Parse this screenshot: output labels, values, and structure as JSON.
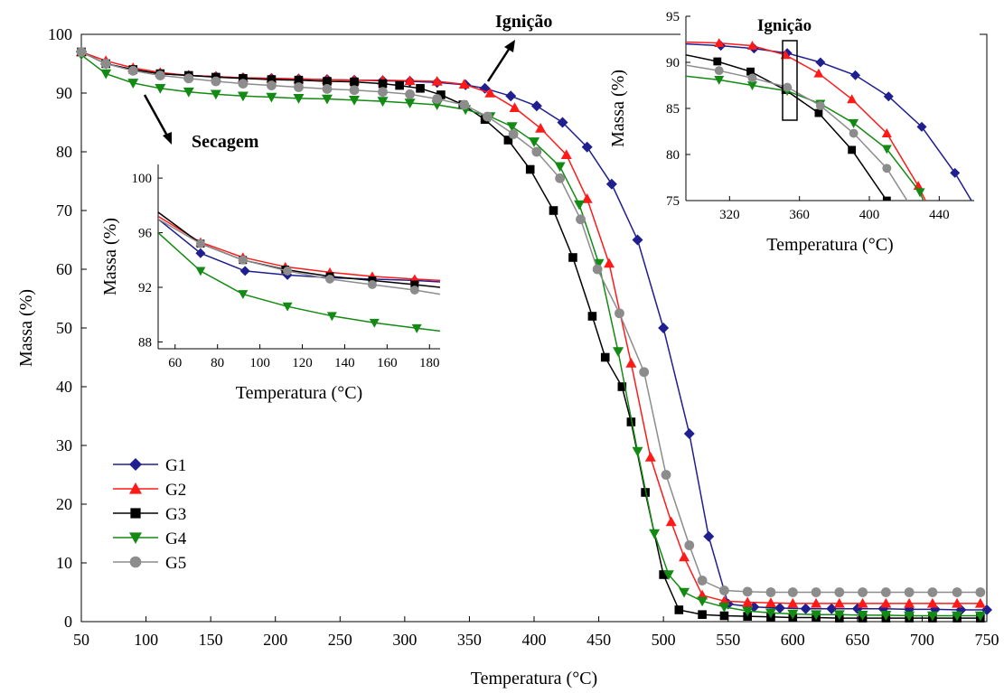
{
  "chart_data": [
    {
      "type": "line",
      "xlabel": "Temperatura (°C)",
      "ylabel": "Massa (%)",
      "xlim": [
        50,
        750
      ],
      "ylim": [
        0,
        100
      ],
      "xticks": [
        50,
        100,
        150,
        200,
        250,
        300,
        350,
        400,
        450,
        500,
        550,
        600,
        650,
        700,
        750
      ],
      "yticks": [
        0,
        10,
        20,
        30,
        40,
        50,
        60,
        70,
        80,
        90,
        100
      ],
      "legend_position": "bottom-left",
      "annotations": [
        {
          "text": "Ignição",
          "x": 370,
          "y": 101.5
        },
        {
          "text": "Secagem",
          "x": 130,
          "y": 86.5
        }
      ],
      "series": [
        {
          "name": "G1",
          "color": "#1f1f8f",
          "marker": "diamond",
          "x": [
            50,
            69,
            90,
            111,
            133,
            154,
            175,
            197,
            218,
            240,
            261,
            283,
            304,
            325,
            347,
            362,
            382,
            402,
            422,
            441,
            460,
            480,
            500,
            520,
            535,
            550,
            570,
            590,
            610,
            630,
            650,
            670,
            690,
            710,
            730,
            750
          ],
          "y": [
            97,
            95,
            94,
            93.3,
            93,
            92.8,
            92.6,
            92.5,
            92.4,
            92.3,
            92.2,
            92.1,
            92,
            91.8,
            91.4,
            90.8,
            89.5,
            87.8,
            85,
            80.8,
            74.5,
            65,
            50,
            32,
            14.5,
            3,
            2.5,
            2.3,
            2.2,
            2.2,
            2.2,
            2.2,
            2.1,
            2.1,
            2,
            2
          ]
        },
        {
          "name": "G2",
          "color": "#ff1a1a",
          "marker": "triangle-up",
          "x": [
            50,
            69,
            90,
            111,
            133,
            154,
            175,
            197,
            218,
            240,
            261,
            283,
            304,
            325,
            346,
            366,
            385,
            405,
            425,
            441,
            458,
            475,
            490,
            506,
            516,
            530,
            547,
            565,
            583,
            600,
            618,
            636,
            654,
            672,
            690,
            708,
            727,
            745
          ],
          "y": [
            97,
            95.5,
            94.3,
            93.5,
            93,
            92.8,
            92.6,
            92.5,
            92.4,
            92.3,
            92.2,
            92.2,
            92.1,
            92,
            91.5,
            90,
            87.5,
            84,
            79.5,
            72,
            61,
            44,
            28,
            17,
            11,
            4.5,
            3.5,
            3.3,
            3.2,
            3.1,
            3.1,
            3.1,
            3.1,
            3.1,
            3.1,
            3.1,
            3.1,
            3.1
          ]
        },
        {
          "name": "G3",
          "color": "#000000",
          "marker": "square",
          "x": [
            50,
            69,
            90,
            111,
            133,
            154,
            175,
            197,
            218,
            240,
            261,
            283,
            296,
            312,
            328,
            345,
            362,
            380,
            397,
            415,
            430,
            445,
            455,
            468,
            475,
            486,
            500,
            512,
            530,
            547,
            565,
            583,
            600,
            618,
            636,
            654,
            672,
            690,
            708,
            727,
            745
          ],
          "y": [
            97,
            95,
            94,
            93.3,
            93,
            92.7,
            92.5,
            92.3,
            92.2,
            92,
            91.9,
            91.6,
            91.3,
            90.8,
            89.7,
            88,
            85.5,
            82,
            77,
            70,
            62,
            52,
            45,
            40,
            34,
            22,
            8,
            2,
            1.2,
            1,
            0.9,
            0.8,
            0.7,
            0.7,
            0.6,
            0.6,
            0.6,
            0.6,
            0.6,
            0.6,
            0.6
          ]
        },
        {
          "name": "G4",
          "color": "#138a13",
          "marker": "triangle-down",
          "x": [
            50,
            69,
            90,
            111,
            133,
            154,
            175,
            197,
            218,
            240,
            261,
            283,
            304,
            325,
            347,
            366,
            383,
            400,
            420,
            435,
            450,
            465,
            480,
            493,
            504,
            516,
            530,
            547,
            565,
            583,
            600,
            618,
            636,
            654,
            672,
            690,
            708,
            727,
            745
          ],
          "y": [
            96.5,
            93.3,
            91.7,
            90.8,
            90.2,
            89.8,
            89.5,
            89.3,
            89.1,
            89,
            88.8,
            88.6,
            88.3,
            88,
            87.2,
            86,
            84.3,
            81.7,
            77.5,
            71,
            61,
            46,
            29,
            15,
            8,
            5,
            3.5,
            2.5,
            1.8,
            1.5,
            1.3,
            1.2,
            1.2,
            1.1,
            1.1,
            1,
            1,
            1,
            1
          ]
        },
        {
          "name": "G5",
          "color": "#8c8c8c",
          "marker": "circle",
          "x": [
            50,
            69,
            90,
            111,
            133,
            154,
            175,
            197,
            218,
            240,
            261,
            283,
            304,
            325,
            346,
            364,
            384,
            402,
            420,
            436,
            449,
            466,
            485,
            502,
            520,
            530,
            547,
            565,
            583,
            600,
            618,
            636,
            654,
            672,
            690,
            708,
            727,
            745
          ],
          "y": [
            97,
            95,
            93.8,
            93,
            92.5,
            92,
            91.6,
            91.3,
            91,
            90.7,
            90.5,
            90.2,
            89.8,
            89,
            88,
            86,
            83,
            80,
            75.5,
            68.5,
            60,
            52.5,
            42.5,
            25,
            13,
            7,
            5.3,
            5.1,
            5,
            5,
            5,
            5,
            5,
            5,
            5,
            5,
            5,
            5
          ]
        }
      ]
    },
    {
      "type": "line",
      "annotation": "Secagem",
      "xlabel": "Temperatura (°C)",
      "ylabel": "Massa (%)",
      "xlim": [
        52,
        185
      ],
      "ylim": [
        87.5,
        101
      ],
      "xticks": [
        60,
        80,
        100,
        120,
        140,
        160,
        180
      ],
      "yticks": [
        88,
        92,
        96,
        100
      ],
      "series": [
        {
          "name": "G1",
          "x": [
            52,
            72,
            93,
            113,
            133,
            153,
            173,
            185
          ],
          "y": [
            97,
            94.5,
            93.2,
            92.9,
            92.7,
            92.6,
            92.5,
            92.4
          ]
        },
        {
          "name": "G2",
          "x": [
            52,
            72,
            92,
            112,
            133,
            153,
            173,
            185
          ],
          "y": [
            97.2,
            95.3,
            94.2,
            93.5,
            93.1,
            92.8,
            92.6,
            92.5
          ]
        },
        {
          "name": "G3",
          "x": [
            52,
            72,
            92,
            112,
            133,
            153,
            173,
            185
          ],
          "y": [
            97.5,
            95.2,
            94,
            93.3,
            92.8,
            92.5,
            92.2,
            92
          ]
        },
        {
          "name": "G4",
          "x": [
            52,
            72,
            92,
            113,
            134,
            154,
            174,
            185
          ],
          "y": [
            96,
            93.2,
            91.5,
            90.6,
            89.9,
            89.4,
            89,
            88.8
          ]
        },
        {
          "name": "G5",
          "x": [
            52,
            72,
            92,
            113,
            133,
            153,
            173,
            185
          ],
          "y": [
            97,
            95.2,
            94,
            93.2,
            92.6,
            92.2,
            91.8,
            91.5
          ]
        }
      ]
    },
    {
      "type": "line",
      "annotation": "Ignição",
      "xlabel": "Temperatura (°C)",
      "ylabel": "Massa (%)",
      "xlim": [
        295,
        460
      ],
      "ylim": [
        75,
        95
      ],
      "xticks": [
        320,
        360,
        400,
        440
      ],
      "yticks": [
        75,
        80,
        85,
        90,
        95
      ],
      "series": [
        {
          "name": "G1",
          "x": [
            295,
            315,
            334,
            353,
            372,
            392,
            411,
            430,
            449,
            460
          ],
          "y": [
            92,
            91.8,
            91.5,
            91,
            90,
            88.6,
            86.3,
            83,
            78,
            74.5
          ]
        },
        {
          "name": "G2",
          "x": [
            295,
            314,
            333,
            352,
            371,
            390,
            410,
            428,
            440
          ],
          "y": [
            92.2,
            92.1,
            91.8,
            90.8,
            88.8,
            86,
            82.3,
            76.6,
            72
          ]
        },
        {
          "name": "G3",
          "x": [
            295,
            313,
            332,
            352,
            371,
            390,
            410,
            420
          ],
          "y": [
            90.8,
            90.1,
            89,
            87,
            84.5,
            80.5,
            75,
            71
          ]
        },
        {
          "name": "G4",
          "x": [
            295,
            314,
            333,
            353,
            372,
            391,
            410,
            429,
            437
          ],
          "y": [
            88.5,
            88.1,
            87.5,
            86.9,
            85.5,
            83.4,
            80.6,
            75.9,
            72
          ]
        },
        {
          "name": "G5",
          "x": [
            295,
            314,
            333,
            353,
            372,
            391,
            410,
            425,
            433
          ],
          "y": [
            89.7,
            89.1,
            88.3,
            87.3,
            85.3,
            82.3,
            78.5,
            74,
            72
          ]
        }
      ]
    }
  ]
}
